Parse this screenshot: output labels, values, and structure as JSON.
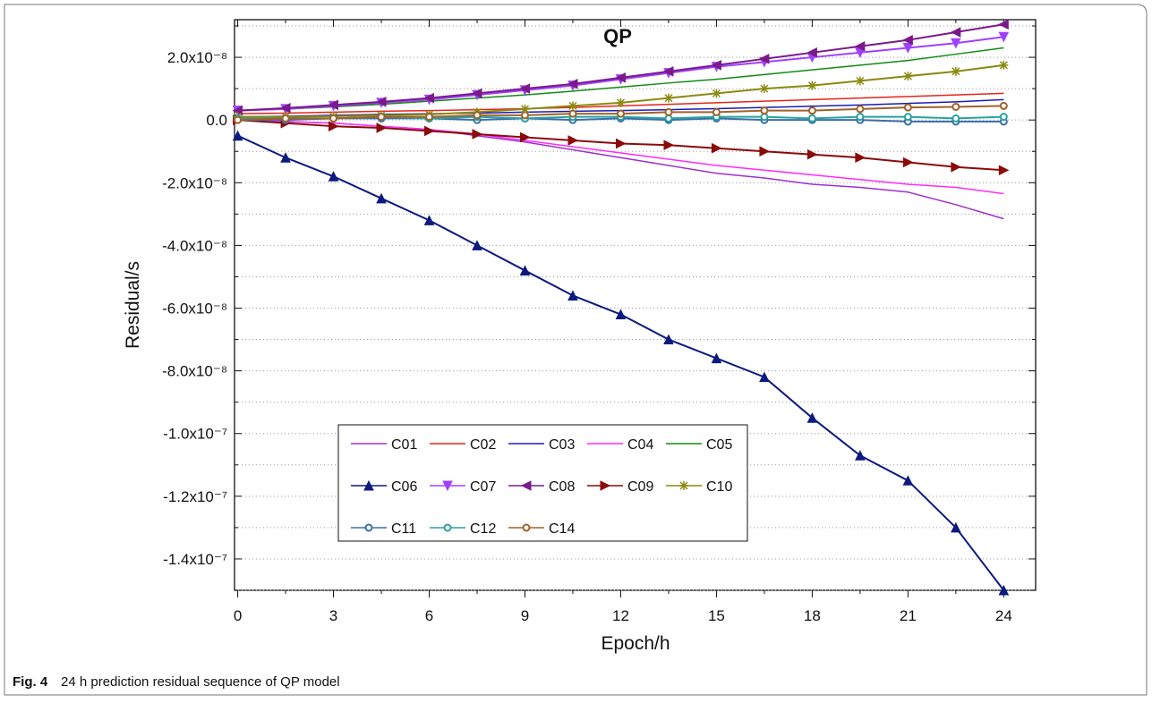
{
  "chart_data": {
    "type": "line",
    "title": "QP",
    "x_label": "Epoch/h",
    "y_label": "Residual/s",
    "caption_label": "Fig. 4",
    "caption": "24 h prediction residual sequence of QP model",
    "x": [
      0,
      1.5,
      3,
      4.5,
      6,
      7.5,
      9,
      10.5,
      12,
      13.5,
      15,
      16.5,
      18,
      19.5,
      21,
      22.5,
      24
    ],
    "xlim": [
      -0.1,
      25
    ],
    "xticks": [
      0,
      3,
      6,
      9,
      12,
      15,
      18,
      21,
      24
    ],
    "xminorticks": [
      1.5,
      4.5,
      7.5,
      10.5,
      13.5,
      16.5,
      19.5,
      22.5
    ],
    "ylim": [
      -1.5e-07,
      3.2e-08
    ],
    "yticks": [
      {
        "value": -1.4e-07,
        "label": "-1.4x10⁻⁷"
      },
      {
        "value": -1.2e-07,
        "label": "-1.2x10⁻⁷"
      },
      {
        "value": -1e-07,
        "label": "-1.0x10⁻⁷"
      },
      {
        "value": -8e-08,
        "label": "-8.0x10⁻⁸"
      },
      {
        "value": -6e-08,
        "label": "-6.0x10⁻⁸"
      },
      {
        "value": -4e-08,
        "label": "-4.0x10⁻⁸"
      },
      {
        "value": -2e-08,
        "label": "-2.0x10⁻⁸"
      },
      {
        "value": 0,
        "label": "0.0"
      },
      {
        "value": 2e-08,
        "label": "2.0x10⁻⁸"
      }
    ],
    "yminorticks": [
      -1.5e-07,
      -1.3e-07,
      -1.1e-07,
      -9e-08,
      -7e-08,
      -5e-08,
      -3e-08,
      -1e-08,
      1e-08,
      3e-08
    ],
    "grid": true,
    "series": [
      {
        "name": "C01",
        "color": "#9b30d0",
        "marker": "none",
        "values": [
          0,
          -5e-10,
          -1e-09,
          -2e-09,
          -3e-09,
          -5e-09,
          -7e-09,
          -9.5e-09,
          -1.2e-08,
          -1.45e-08,
          -1.7e-08,
          -1.85e-08,
          -2.05e-08,
          -2.15e-08,
          -2.3e-08,
          -2.7e-08,
          -3.15e-08
        ]
      },
      {
        "name": "C02",
        "color": "#e8231a",
        "marker": "none",
        "values": [
          2e-09,
          2.2e-09,
          2.5e-09,
          2.8e-09,
          3e-09,
          3.3e-09,
          3.6e-09,
          4e-09,
          4.5e-09,
          5e-09,
          5.5e-09,
          6e-09,
          6.5e-09,
          7e-09,
          7.5e-09,
          8e-09,
          8.5e-09
        ]
      },
      {
        "name": "C03",
        "color": "#1a1ab8",
        "marker": "none",
        "values": [
          1e-09,
          1.2e-09,
          1.5e-09,
          1.8e-09,
          2e-09,
          2.2e-09,
          2.5e-09,
          2.8e-09,
          3e-09,
          3.3e-09,
          3.6e-09,
          4e-09,
          4.4e-09,
          4.8e-09,
          5.3e-09,
          5.8e-09,
          6.5e-09
        ]
      },
      {
        "name": "C04",
        "color": "#ff2bff",
        "marker": "none",
        "values": [
          0,
          -5e-10,
          -1e-09,
          -2e-09,
          -3e-09,
          -4.5e-09,
          -6.5e-09,
          -8.5e-09,
          -1.05e-08,
          -1.25e-08,
          -1.45e-08,
          -1.6e-08,
          -1.75e-08,
          -1.9e-08,
          -2.05e-08,
          -2.15e-08,
          -2.35e-08
        ]
      },
      {
        "name": "C05",
        "color": "#138a13",
        "marker": "none",
        "values": [
          3e-09,
          3.5e-09,
          4.2e-09,
          5e-09,
          6e-09,
          7e-09,
          8e-09,
          9.2e-09,
          1.05e-08,
          1.18e-08,
          1.3e-08,
          1.45e-08,
          1.6e-08,
          1.75e-08,
          1.9e-08,
          2.1e-08,
          2.3e-08
        ]
      },
      {
        "name": "C06",
        "color": "#0c1a80",
        "marker": "up",
        "values": [
          -5e-09,
          -1.2e-08,
          -1.8e-08,
          -2.5e-08,
          -3.2e-08,
          -4e-08,
          -4.8e-08,
          -5.6e-08,
          -6.2e-08,
          -7e-08,
          -7.6e-08,
          -8.2e-08,
          -9.5e-08,
          -1.07e-07,
          -1.15e-07,
          -1.3e-07,
          -1.5e-07
        ]
      },
      {
        "name": "C07",
        "color": "#a040ff",
        "marker": "down",
        "values": [
          3e-09,
          3.5e-09,
          4.5e-09,
          5.5e-09,
          6.5e-09,
          8e-09,
          9.5e-09,
          1.1e-08,
          1.3e-08,
          1.5e-08,
          1.7e-08,
          1.85e-08,
          2e-08,
          2.15e-08,
          2.3e-08,
          2.45e-08,
          2.65e-08
        ]
      },
      {
        "name": "C08",
        "color": "#7a1a8a",
        "marker": "left",
        "values": [
          3e-09,
          3.8e-09,
          4.8e-09,
          5.8e-09,
          7e-09,
          8.5e-09,
          1e-08,
          1.15e-08,
          1.35e-08,
          1.55e-08,
          1.75e-08,
          1.95e-08,
          2.15e-08,
          2.35e-08,
          2.55e-08,
          2.8e-08,
          3.05e-08
        ]
      },
      {
        "name": "C09",
        "color": "#8b0a0a",
        "marker": "right",
        "values": [
          0,
          -1e-09,
          -2e-09,
          -2.5e-09,
          -3.5e-09,
          -4.5e-09,
          -5.5e-09,
          -6.5e-09,
          -7.5e-09,
          -8e-09,
          -9e-09,
          -1e-08,
          -1.1e-08,
          -1.2e-08,
          -1.35e-08,
          -1.5e-08,
          -1.6e-08
        ]
      },
      {
        "name": "C10",
        "color": "#8a8a10",
        "marker": "star",
        "values": [
          1e-09,
          1e-09,
          1.2e-09,
          1.5e-09,
          1.8e-09,
          2.5e-09,
          3.5e-09,
          4.5e-09,
          5.5e-09,
          7e-09,
          8.5e-09,
          1e-08,
          1.1e-08,
          1.25e-08,
          1.4e-08,
          1.55e-08,
          1.75e-08
        ]
      },
      {
        "name": "C11",
        "color": "#3a6ea8",
        "marker": "circle",
        "values": [
          0,
          0,
          5e-10,
          5e-10,
          5e-10,
          0,
          5e-10,
          0,
          5e-10,
          0,
          5e-10,
          0,
          0,
          0,
          -5e-10,
          -5e-10,
          -5e-10
        ]
      },
      {
        "name": "C12",
        "color": "#2aa0a0",
        "marker": "circle",
        "values": [
          5e-10,
          5e-10,
          5e-10,
          1e-09,
          5e-10,
          1e-09,
          5e-10,
          1e-09,
          1e-09,
          5e-10,
          1e-09,
          1e-09,
          5e-10,
          1e-09,
          1e-09,
          5e-10,
          1e-09
        ]
      },
      {
        "name": "C14",
        "color": "#a0622a",
        "marker": "circle",
        "values": [
          0,
          5e-10,
          5e-10,
          1e-09,
          1e-09,
          1.5e-09,
          1.5e-09,
          2e-09,
          2e-09,
          2.5e-09,
          2.5e-09,
          3e-09,
          3e-09,
          3.5e-09,
          4e-09,
          4.2e-09,
          4.5e-09
        ]
      }
    ]
  }
}
